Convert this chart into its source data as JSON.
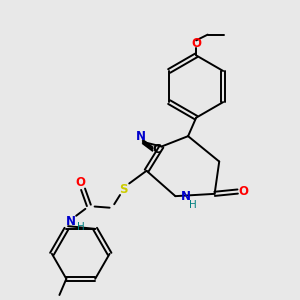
{
  "bg_color": "#e8e8e8",
  "bond_color": "#000000",
  "atom_colors": {
    "O": "#ff0000",
    "N": "#0000cc",
    "S": "#cccc00",
    "H": "#008080"
  },
  "figsize": [
    3.0,
    3.0
  ],
  "dpi": 100
}
